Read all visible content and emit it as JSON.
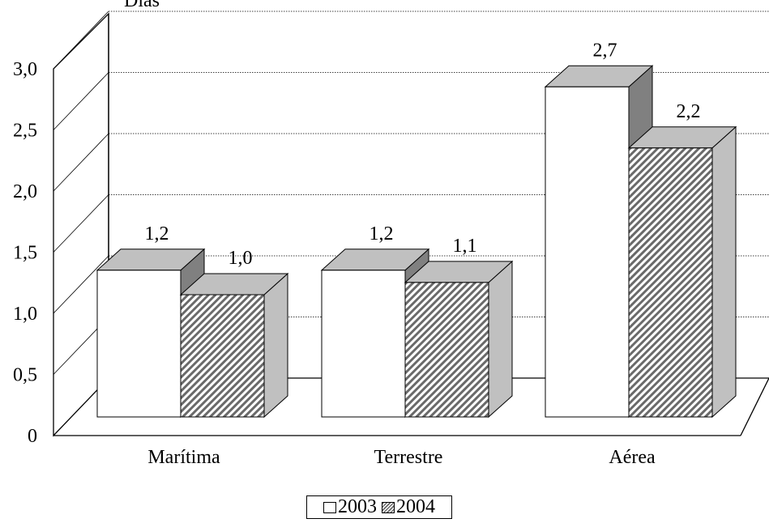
{
  "chart_data": {
    "type": "bar",
    "categories": [
      "Marítima",
      "Terrestre",
      "Aérea"
    ],
    "series": [
      {
        "name": "2003",
        "values": [
          1.2,
          1.2,
          2.7
        ],
        "labels": [
          "1,2",
          "1,2",
          "2,7"
        ],
        "color": "#ffffff"
      },
      {
        "name": "2004",
        "values": [
          1.0,
          1.1,
          2.2
        ],
        "labels": [
          "1,0",
          "1,1",
          "2,2"
        ],
        "color": "#8c8c8c"
      }
    ],
    "ylabel": "Días",
    "ylim": [
      0,
      3.0
    ],
    "yticks": [
      0,
      0.5,
      1.0,
      1.5,
      2.0,
      2.5,
      3.0
    ],
    "ytick_labels": [
      "0",
      "0,5",
      "1,0",
      "1,5",
      "2,0",
      "2,5",
      "3,0"
    ],
    "grid": true,
    "legend": "bottom",
    "three_d": true
  }
}
